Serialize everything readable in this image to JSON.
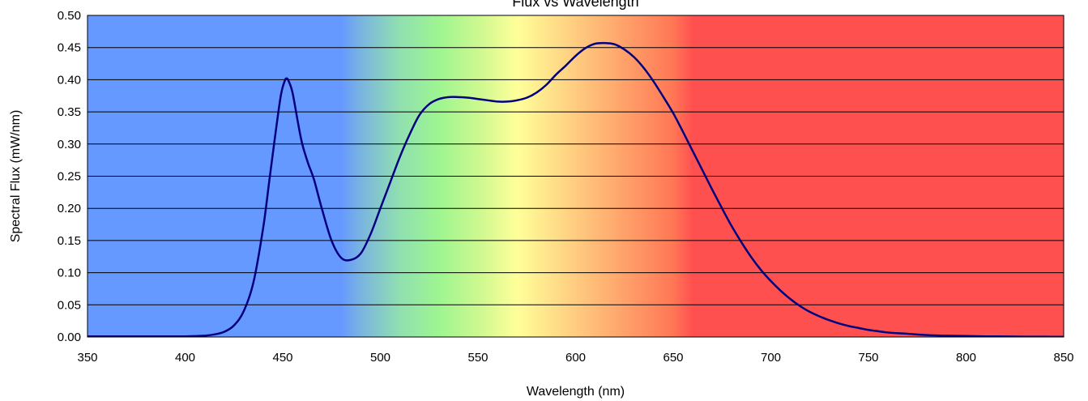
{
  "chart_data": {
    "type": "line",
    "title": "Flux vs Wavelength",
    "xlabel": "Wavelength (nm)",
    "ylabel": "Spectral Flux (mW/nm)",
    "xlim": [
      350,
      850
    ],
    "ylim": [
      0,
      0.5
    ],
    "x_ticks": [
      350,
      400,
      450,
      500,
      550,
      600,
      650,
      700,
      750,
      800,
      850
    ],
    "y_ticks": [
      0,
      0.05,
      0.1,
      0.15,
      0.2,
      0.25,
      0.3,
      0.35,
      0.4,
      0.45,
      0.5
    ],
    "x_tick_labels": [
      "350",
      "400",
      "450",
      "500",
      "550",
      "600",
      "650",
      "700",
      "750",
      "800",
      "850"
    ],
    "y_tick_labels": [
      "0.00",
      "0.05",
      "0.10",
      "0.15",
      "0.20",
      "0.25",
      "0.30",
      "0.35",
      "0.40",
      "0.45",
      "0.50"
    ],
    "grid": "horizontal",
    "legend": "none",
    "line_color": "#000080",
    "background_bands": [
      {
        "from": 350,
        "to": 480,
        "color": "#6699ff"
      },
      {
        "from": 480,
        "to": 500,
        "color": "#7ab4e0"
      },
      {
        "from": 500,
        "to": 520,
        "color": "#90e0b0"
      },
      {
        "from": 520,
        "to": 540,
        "color": "#9ef590"
      },
      {
        "from": 540,
        "to": 560,
        "color": "#ccf890"
      },
      {
        "from": 560,
        "to": 580,
        "color": "#ffff99"
      },
      {
        "from": 580,
        "to": 600,
        "color": "#ffdd88"
      },
      {
        "from": 600,
        "to": 620,
        "color": "#ffbb77"
      },
      {
        "from": 620,
        "to": 640,
        "color": "#ff9966"
      },
      {
        "from": 640,
        "to": 660,
        "color": "#ff7755"
      },
      {
        "from": 660,
        "to": 850,
        "color": "#ff5050"
      }
    ],
    "series": [
      {
        "x": [
          350,
          380,
          400,
          410,
          415,
          420,
          425,
          430,
          435,
          440,
          443,
          446,
          449,
          451,
          452,
          453,
          455,
          458,
          460,
          463,
          466,
          470,
          475,
          480,
          485,
          490,
          495,
          500,
          505,
          510,
          515,
          520,
          525,
          530,
          535,
          540,
          545,
          550,
          555,
          560,
          565,
          570,
          575,
          580,
          585,
          590,
          595,
          600,
          605,
          610,
          615,
          620,
          625,
          630,
          635,
          640,
          645,
          650,
          655,
          660,
          665,
          670,
          675,
          680,
          685,
          690,
          695,
          700,
          705,
          710,
          715,
          720,
          725,
          730,
          735,
          740,
          745,
          750,
          755,
          760,
          770,
          780,
          790,
          800,
          810,
          820,
          830,
          840,
          850
        ],
        "y": [
          0.001,
          0.001,
          0.001,
          0.002,
          0.004,
          0.008,
          0.018,
          0.04,
          0.085,
          0.17,
          0.24,
          0.31,
          0.375,
          0.398,
          0.402,
          0.398,
          0.38,
          0.33,
          0.3,
          0.27,
          0.245,
          0.2,
          0.15,
          0.123,
          0.12,
          0.13,
          0.16,
          0.2,
          0.24,
          0.28,
          0.315,
          0.345,
          0.362,
          0.37,
          0.373,
          0.373,
          0.372,
          0.37,
          0.368,
          0.366,
          0.366,
          0.368,
          0.372,
          0.38,
          0.392,
          0.408,
          0.422,
          0.437,
          0.449,
          0.456,
          0.457,
          0.455,
          0.447,
          0.435,
          0.418,
          0.397,
          0.373,
          0.348,
          0.319,
          0.289,
          0.259,
          0.229,
          0.2,
          0.172,
          0.147,
          0.124,
          0.104,
          0.087,
          0.072,
          0.059,
          0.048,
          0.039,
          0.032,
          0.026,
          0.021,
          0.017,
          0.014,
          0.011,
          0.009,
          0.007,
          0.005,
          0.003,
          0.002,
          0.0015,
          0.001,
          0.0008,
          0.0005,
          0.0004,
          0.0003
        ]
      }
    ]
  }
}
